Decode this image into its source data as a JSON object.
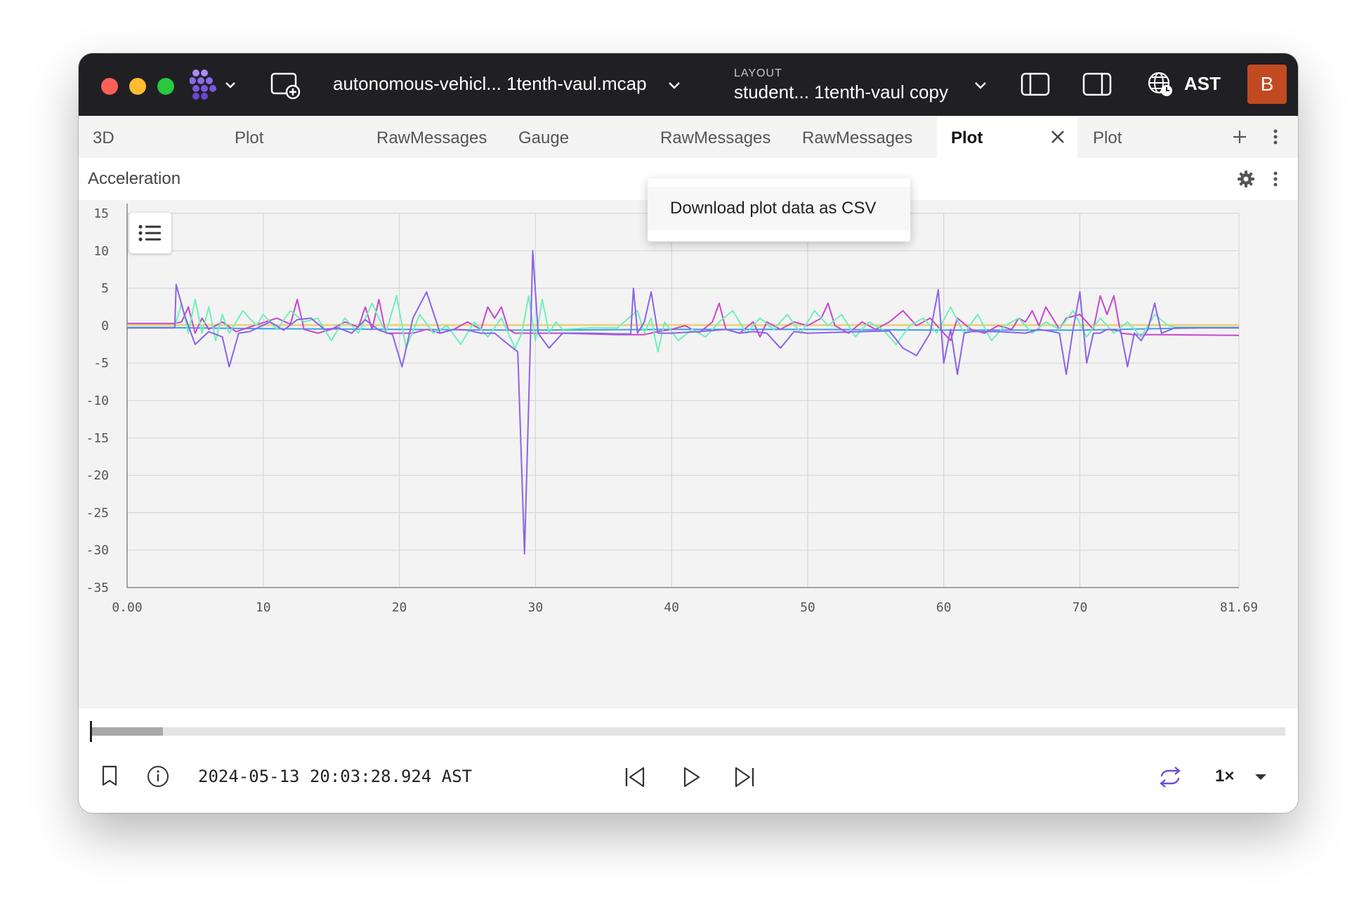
{
  "titlebar": {
    "file_name": "autonomous-vehicl... 1tenth-vaul.mcap",
    "layout_caption": "LAYOUT",
    "layout_name": "student...  1tenth-vaul copy",
    "timezone": "AST",
    "avatar_initial": "B"
  },
  "tabs": [
    {
      "label": "3D"
    },
    {
      "label": "Plot"
    },
    {
      "label": "RawMessages"
    },
    {
      "label": "Gauge"
    },
    {
      "label": "RawMessages"
    },
    {
      "label": "RawMessages"
    },
    {
      "label": "Plot",
      "active": true
    },
    {
      "label": "Plot"
    }
  ],
  "panel": {
    "title": "Acceleration",
    "menu_item": "Download plot data as CSV"
  },
  "chart_data": {
    "type": "line",
    "xlim": [
      0,
      81.69
    ],
    "ylim": [
      -35,
      15
    ],
    "x_ticks": [
      "0.00",
      "10",
      "20",
      "30",
      "40",
      "50",
      "60",
      "70",
      "81.69"
    ],
    "y_ticks": [
      "15",
      "10",
      "5",
      "0",
      "-5",
      "-10",
      "-15",
      "-20",
      "-25",
      "-30",
      "-35"
    ],
    "grid": true,
    "legend": "hidden (legend toggle at top-left)",
    "series": [
      {
        "color": "#8a63e8",
        "points": [
          [
            0,
            -0.3
          ],
          [
            3.5,
            -0.3
          ],
          [
            3.6,
            5.5
          ],
          [
            4.2,
            1.5
          ],
          [
            5,
            -2.5
          ],
          [
            6,
            -0.8
          ],
          [
            7,
            -1.5
          ],
          [
            7.5,
            -5.5
          ],
          [
            8.2,
            -1
          ],
          [
            9,
            -0.8
          ],
          [
            10.5,
            0.5
          ],
          [
            11.5,
            -0.6
          ],
          [
            12.5,
            0.8
          ],
          [
            13.5,
            1
          ],
          [
            14.5,
            -0.5
          ],
          [
            15.5,
            -0.3
          ],
          [
            16.5,
            -1
          ],
          [
            17.5,
            0.8
          ],
          [
            18.5,
            -0.6
          ],
          [
            19.5,
            -1.2
          ],
          [
            20.2,
            -5.5
          ],
          [
            21,
            1
          ],
          [
            22,
            4.5
          ],
          [
            23,
            -1
          ],
          [
            24,
            -0.5
          ],
          [
            25,
            -0.6
          ],
          [
            26,
            -1
          ],
          [
            27,
            -1
          ],
          [
            28,
            -2.5
          ],
          [
            28.7,
            -3.5
          ],
          [
            29.2,
            -30.5
          ],
          [
            29.6,
            -4
          ],
          [
            29.8,
            10
          ],
          [
            30.2,
            -1
          ],
          [
            31,
            -3
          ],
          [
            31.5,
            -2
          ],
          [
            32,
            -1
          ],
          [
            34,
            -1
          ],
          [
            36,
            -1.1
          ],
          [
            37,
            -1.1
          ],
          [
            37.2,
            5
          ],
          [
            37.5,
            -1
          ],
          [
            38,
            0.5
          ],
          [
            38.5,
            4.5
          ],
          [
            39,
            -1
          ],
          [
            40,
            -1
          ],
          [
            42,
            -0.8
          ],
          [
            44,
            -0.5
          ],
          [
            45,
            -1
          ],
          [
            46,
            -0.8
          ],
          [
            47,
            -1
          ],
          [
            48,
            -3
          ],
          [
            49,
            -0.8
          ],
          [
            50,
            -1
          ],
          [
            52,
            -0.9
          ],
          [
            54,
            -0.8
          ],
          [
            56,
            -0.7
          ],
          [
            57,
            -3
          ],
          [
            58,
            -4
          ],
          [
            59,
            -1
          ],
          [
            59.6,
            4.8
          ],
          [
            60,
            -5
          ],
          [
            60.5,
            -0.5
          ],
          [
            61,
            -6.5
          ],
          [
            61.5,
            -1
          ],
          [
            62,
            -0.8
          ],
          [
            64,
            -0.8
          ],
          [
            66,
            -1
          ],
          [
            67,
            -0.5
          ],
          [
            68,
            -0.8
          ],
          [
            68.5,
            -1
          ],
          [
            69,
            -6.5
          ],
          [
            69.5,
            -0.5
          ],
          [
            70,
            4.5
          ],
          [
            70.5,
            -5
          ],
          [
            71,
            -1
          ],
          [
            71.5,
            -1
          ],
          [
            72,
            -0.5
          ],
          [
            73,
            -0.7
          ],
          [
            73.5,
            -5.5
          ],
          [
            74,
            -1
          ],
          [
            74.5,
            -2
          ],
          [
            75,
            -0.5
          ],
          [
            75.5,
            3
          ],
          [
            76,
            -1
          ],
          [
            77,
            -0.3
          ],
          [
            81.69,
            -0.3
          ]
        ]
      },
      {
        "color": "#6ff0b8",
        "points": [
          [
            0,
            -0.2
          ],
          [
            3.5,
            -0.2
          ],
          [
            4,
            3
          ],
          [
            4.5,
            -1
          ],
          [
            5,
            3.5
          ],
          [
            5.5,
            -1
          ],
          [
            6,
            2.5
          ],
          [
            6.5,
            -2
          ],
          [
            7,
            1.5
          ],
          [
            7.5,
            -1
          ],
          [
            8.5,
            2
          ],
          [
            9.5,
            0
          ],
          [
            10,
            1.5
          ],
          [
            11,
            -0.5
          ],
          [
            12,
            2
          ],
          [
            13,
            0.5
          ],
          [
            14,
            1
          ],
          [
            15,
            -2
          ],
          [
            16,
            1
          ],
          [
            17,
            -1
          ],
          [
            18,
            3
          ],
          [
            19,
            -1
          ],
          [
            19.8,
            4
          ],
          [
            20.5,
            -3
          ],
          [
            21.5,
            1.5
          ],
          [
            22.5,
            -1
          ],
          [
            23.5,
            0
          ],
          [
            24.5,
            -2.5
          ],
          [
            25.5,
            0.5
          ],
          [
            26.5,
            -1.5
          ],
          [
            27.5,
            1
          ],
          [
            28.5,
            -3
          ],
          [
            29,
            -1
          ],
          [
            29.5,
            4
          ],
          [
            30,
            -2
          ],
          [
            30.5,
            3.5
          ],
          [
            31,
            -1
          ],
          [
            31.5,
            0.5
          ],
          [
            32,
            -0.5
          ],
          [
            34,
            -0.3
          ],
          [
            36,
            -0.3
          ],
          [
            37.5,
            2
          ],
          [
            38,
            -1
          ],
          [
            38.5,
            1
          ],
          [
            39,
            -3.5
          ],
          [
            39.5,
            0.5
          ],
          [
            40.5,
            -2
          ],
          [
            41.5,
            -0.5
          ],
          [
            42.5,
            -1.5
          ],
          [
            43.5,
            0.5
          ],
          [
            44.5,
            2
          ],
          [
            45.5,
            -1
          ],
          [
            46.5,
            1
          ],
          [
            47.5,
            -0.5
          ],
          [
            48.5,
            1.5
          ],
          [
            49.5,
            -1
          ],
          [
            50.5,
            2
          ],
          [
            51.5,
            0
          ],
          [
            52.5,
            1.5
          ],
          [
            53.5,
            -1.5
          ],
          [
            54.5,
            0.5
          ],
          [
            55.5,
            -0.5
          ],
          [
            56.5,
            -2.5
          ],
          [
            57.5,
            0
          ],
          [
            58.5,
            1
          ],
          [
            59.5,
            -1
          ],
          [
            60.5,
            2.5
          ],
          [
            61.5,
            -1
          ],
          [
            62.5,
            1.5
          ],
          [
            63.5,
            -2
          ],
          [
            64.5,
            0
          ],
          [
            65.5,
            1
          ],
          [
            66.5,
            -1
          ],
          [
            67.5,
            0.5
          ],
          [
            68.5,
            -0.5
          ],
          [
            69.5,
            2
          ],
          [
            70.5,
            -1.5
          ],
          [
            71.5,
            1
          ],
          [
            72.5,
            -1
          ],
          [
            73.5,
            0.5
          ],
          [
            74.5,
            -1.5
          ],
          [
            75.5,
            1.5
          ],
          [
            76.5,
            0
          ],
          [
            77,
            -0.2
          ],
          [
            81.69,
            -0.2
          ]
        ]
      },
      {
        "color": "#c847d0",
        "points": [
          [
            0,
            0.3
          ],
          [
            3.5,
            0.3
          ],
          [
            4,
            0.5
          ],
          [
            4.5,
            2.5
          ],
          [
            5,
            -1
          ],
          [
            5.5,
            1
          ],
          [
            6,
            -0.5
          ],
          [
            7,
            0.5
          ],
          [
            8,
            -0.8
          ],
          [
            9,
            -0.2
          ],
          [
            10,
            0.4
          ],
          [
            11,
            1
          ],
          [
            12,
            0.2
          ],
          [
            12.5,
            3.5
          ],
          [
            13,
            -0.5
          ],
          [
            14,
            -1
          ],
          [
            15,
            -0.5
          ],
          [
            16,
            0.5
          ],
          [
            17,
            -0.2
          ],
          [
            17.5,
            2.5
          ],
          [
            18,
            -0.5
          ],
          [
            18.5,
            3.5
          ],
          [
            19,
            -1
          ],
          [
            20,
            -1
          ],
          [
            21,
            -1
          ],
          [
            22,
            -0.5
          ],
          [
            23,
            -1
          ],
          [
            24,
            -0.5
          ],
          [
            25,
            0.5
          ],
          [
            26,
            -0.5
          ],
          [
            26.5,
            2.5
          ],
          [
            27,
            1
          ],
          [
            27.5,
            2.5
          ],
          [
            28,
            -0.5
          ],
          [
            28.5,
            -1
          ],
          [
            29,
            -1
          ],
          [
            32,
            -1
          ],
          [
            36,
            -1.2
          ],
          [
            38,
            -1.2
          ],
          [
            39,
            -0.8
          ],
          [
            40,
            -0.5
          ],
          [
            41,
            0
          ],
          [
            42,
            -1
          ],
          [
            43,
            0.5
          ],
          [
            43.5,
            3
          ],
          [
            44,
            -0.5
          ],
          [
            45,
            -1
          ],
          [
            46,
            0.5
          ],
          [
            46.5,
            -1.5
          ],
          [
            47,
            0.5
          ],
          [
            48,
            -0.5
          ],
          [
            49,
            0.5
          ],
          [
            50,
            0
          ],
          [
            51,
            1
          ],
          [
            51.5,
            3
          ],
          [
            52,
            0
          ],
          [
            53,
            -1
          ],
          [
            54,
            0.5
          ],
          [
            55,
            -0.5
          ],
          [
            56,
            0.5
          ],
          [
            57,
            2
          ],
          [
            58,
            0
          ],
          [
            59,
            1
          ],
          [
            60,
            -1
          ],
          [
            60.5,
            -2
          ],
          [
            61,
            1
          ],
          [
            62,
            -0.5
          ],
          [
            63,
            -1
          ],
          [
            64,
            0
          ],
          [
            65,
            -0.5
          ],
          [
            65.5,
            1
          ],
          [
            66,
            0.5
          ],
          [
            66.5,
            2
          ],
          [
            67,
            0
          ],
          [
            67.5,
            2.5
          ],
          [
            68,
            1
          ],
          [
            68.5,
            -0.5
          ],
          [
            69,
            1
          ],
          [
            70,
            1.5
          ],
          [
            71,
            -0.5
          ],
          [
            71.5,
            4
          ],
          [
            72,
            1.5
          ],
          [
            72.5,
            4
          ],
          [
            73,
            -1
          ],
          [
            74,
            -1.2
          ],
          [
            76,
            -1.2
          ],
          [
            81.69,
            -1.3
          ]
        ]
      },
      {
        "color": "#f0d060",
        "points": [
          [
            0,
            0.1
          ],
          [
            20,
            0.1
          ],
          [
            30,
            0.1
          ],
          [
            40,
            0.1
          ],
          [
            50,
            0.1
          ],
          [
            60,
            0.1
          ],
          [
            81.69,
            0.1
          ]
        ]
      },
      {
        "color": "#3aa0e8",
        "points": [
          [
            0,
            -0.2
          ],
          [
            10,
            -0.4
          ],
          [
            20,
            -0.5
          ],
          [
            28,
            -0.6
          ],
          [
            30,
            -0.6
          ],
          [
            40,
            -0.5
          ],
          [
            50,
            -0.5
          ],
          [
            60,
            -0.6
          ],
          [
            70,
            -0.6
          ],
          [
            81.69,
            -0.2
          ]
        ]
      }
    ]
  },
  "playback": {
    "timestamp": "2024-05-13 20:03:28.924 AST",
    "speed": "1×",
    "progress": 0.06
  }
}
